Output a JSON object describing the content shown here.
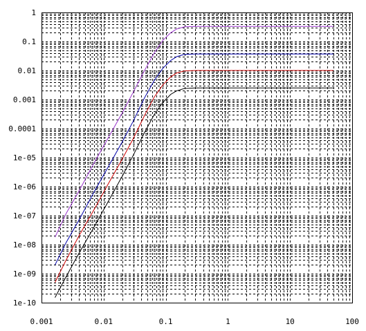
{
  "chart_data": {
    "type": "line",
    "title": "",
    "xlabel": "",
    "ylabel": "",
    "x_scale": "log",
    "y_scale": "log",
    "xlim": [
      0.001,
      100
    ],
    "ylim": [
      1e-10,
      1
    ],
    "grid": true,
    "legend": "none",
    "x_ticks": [
      {
        "value": 0.001,
        "label": "0.001"
      },
      {
        "value": 0.01,
        "label": "0.01"
      },
      {
        "value": 0.1,
        "label": "0.1"
      },
      {
        "value": 1,
        "label": "1"
      },
      {
        "value": 10,
        "label": "10"
      },
      {
        "value": 100,
        "label": "100"
      }
    ],
    "y_ticks": [
      {
        "value": 1,
        "label": "1"
      },
      {
        "value": 0.1,
        "label": "0.1"
      },
      {
        "value": 0.01,
        "label": "0.01"
      },
      {
        "value": 0.001,
        "label": "0.001"
      },
      {
        "value": 0.0001,
        "label": "0.0001"
      },
      {
        "value": 1e-05,
        "label": "1e-05"
      },
      {
        "value": 1e-06,
        "label": "1e-06"
      },
      {
        "value": 1e-07,
        "label": "1e-07"
      },
      {
        "value": 1e-08,
        "label": "1e-08"
      },
      {
        "value": 1e-09,
        "label": "1e-09"
      },
      {
        "value": 1e-10,
        "label": "1e-10"
      }
    ],
    "series": [
      {
        "color": "#9933cc",
        "x": [
          0.00165,
          0.0025,
          0.004,
          0.007,
          0.012,
          0.02,
          0.03,
          0.045,
          0.065,
          0.09,
          0.12,
          0.15,
          0.2,
          0.3,
          1,
          10,
          50
        ],
        "y": [
          1.8e-08,
          1.2e-07,
          7e-07,
          6.5e-06,
          5e-05,
          0.00035,
          0.0018,
          0.0095,
          0.04,
          0.11,
          0.2,
          0.27,
          0.32,
          0.33,
          0.33,
          0.33,
          0.33
        ]
      },
      {
        "color": "#0000aa",
        "x": [
          0.00165,
          0.0025,
          0.004,
          0.007,
          0.012,
          0.02,
          0.03,
          0.045,
          0.065,
          0.09,
          0.12,
          0.15,
          0.2,
          0.3,
          1,
          10,
          50
        ],
        "y": [
          2e-09,
          1.2e-08,
          7e-08,
          6.5e-07,
          5e-06,
          3.5e-05,
          0.00018,
          0.0011,
          0.0045,
          0.012,
          0.022,
          0.03,
          0.036,
          0.037,
          0.037,
          0.037,
          0.037
        ]
      },
      {
        "color": "#cc0000",
        "x": [
          0.00165,
          0.0025,
          0.004,
          0.007,
          0.012,
          0.02,
          0.03,
          0.045,
          0.065,
          0.09,
          0.12,
          0.15,
          0.2,
          0.3,
          1,
          10,
          50
        ],
        "y": [
          5e-10,
          3e-09,
          2e-08,
          1.6e-07,
          1.3e-06,
          9e-06,
          4.5e-05,
          0.00027,
          0.0012,
          0.0032,
          0.006,
          0.0082,
          0.0097,
          0.01,
          0.01,
          0.01,
          0.01
        ]
      },
      {
        "color": "#000000",
        "x": [
          0.00165,
          0.0025,
          0.004,
          0.007,
          0.012,
          0.02,
          0.03,
          0.045,
          0.065,
          0.09,
          0.12,
          0.15,
          0.2,
          0.3,
          1,
          10,
          50
        ],
        "y": [
          1.5e-10,
          8e-10,
          5e-09,
          4e-08,
          3.2e-07,
          2.3e-06,
          1.2e-05,
          7e-05,
          0.0003,
          0.0008,
          0.0015,
          0.002,
          0.0024,
          0.0025,
          0.0025,
          0.0025,
          0.0025
        ]
      }
    ]
  }
}
